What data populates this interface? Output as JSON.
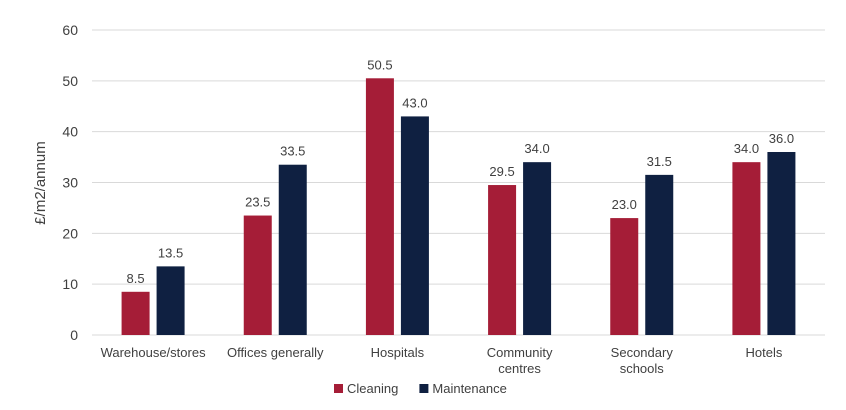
{
  "chart_data": {
    "type": "bar",
    "title": "",
    "xlabel": "",
    "ylabel": "£/m2/annum",
    "ylim": [
      0,
      60
    ],
    "yticks": [
      0,
      10,
      20,
      30,
      40,
      50,
      60
    ],
    "grid": true,
    "legend_position": "bottom",
    "categories": [
      [
        "Warehouse/stores"
      ],
      [
        "Offices generally"
      ],
      [
        "Hospitals"
      ],
      [
        "Community",
        "centres"
      ],
      [
        "Secondary",
        "schools"
      ],
      [
        "Hotels"
      ]
    ],
    "series": [
      {
        "name": "Cleaning",
        "color": "#a51d37",
        "values": [
          8.5,
          23.5,
          50.5,
          29.5,
          23.0,
          34.0
        ],
        "labels": [
          "8.5",
          "23.5",
          "50.5",
          "29.5",
          "23.0",
          "34.0"
        ]
      },
      {
        "name": "Maintenance",
        "color": "#0f2041",
        "values": [
          13.5,
          33.5,
          43.0,
          34.0,
          31.5,
          36.0
        ],
        "labels": [
          "13.5",
          "33.5",
          "43.0",
          "34.0",
          "31.5",
          "36.0"
        ]
      }
    ]
  }
}
